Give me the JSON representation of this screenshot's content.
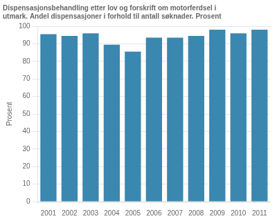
{
  "chart_data": {
    "type": "bar",
    "title": [
      "Dispensasjonsbehandling etter lov og forskrift om motorferdsel i",
      "utmark. Andel dispensasjoner i forhold til antall søknader. Prosent"
    ],
    "ylabel": "Prosent",
    "categories": [
      "2001",
      "2002",
      "2003",
      "2004",
      "2005",
      "2006",
      "2007",
      "2008",
      "2009",
      "2010",
      "2011"
    ],
    "values": [
      95.5,
      94.5,
      96.0,
      89.5,
      85.5,
      93.5,
      93.5,
      94.5,
      98.0,
      96.0,
      98.0
    ],
    "color": "#3a87b0",
    "ylim": [
      0,
      100
    ],
    "yticks": [
      0,
      10,
      20,
      30,
      40,
      50,
      60,
      70,
      80,
      90,
      100
    ],
    "grid": true
  }
}
